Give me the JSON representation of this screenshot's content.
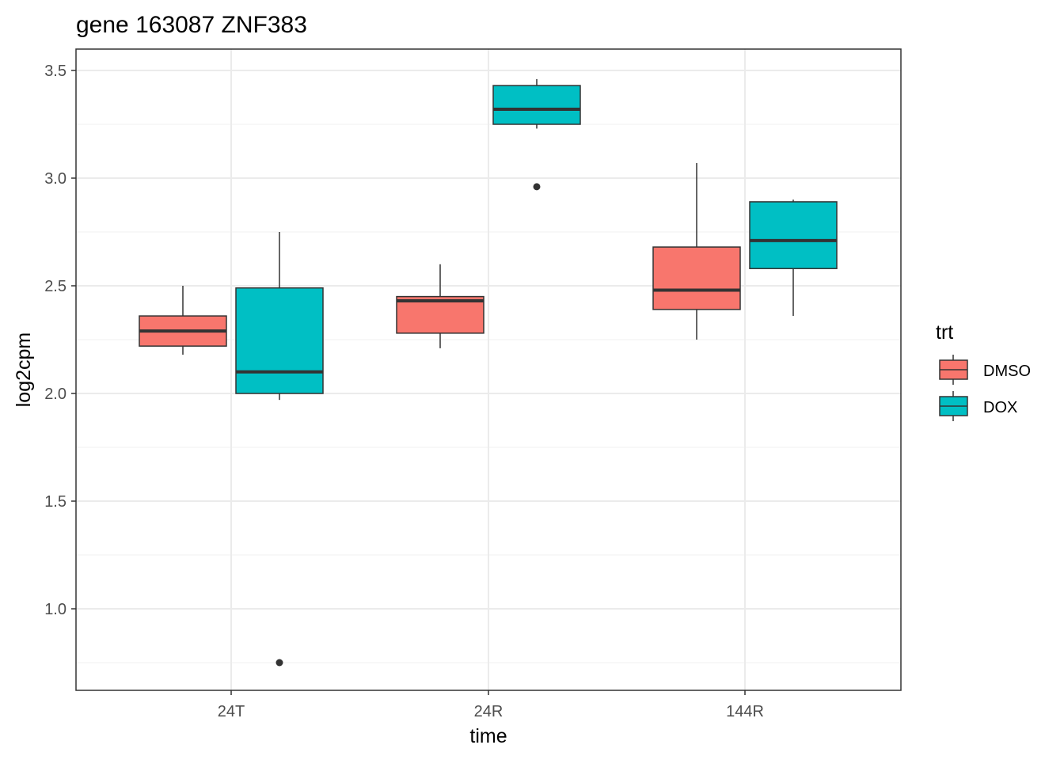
{
  "chart_data": {
    "type": "boxplot",
    "title": "gene 163087 ZNF383",
    "xlabel": "time",
    "ylabel": "log2cpm",
    "categories": [
      "24T",
      "24R",
      "144R"
    ],
    "ylim": [
      0.65,
      3.6
    ],
    "yticks": [
      1.0,
      1.5,
      2.0,
      2.5,
      3.0,
      3.5
    ],
    "ytick_labels": [
      "1.0",
      "1.5",
      "2.0",
      "2.5",
      "3.0",
      "3.5"
    ],
    "grid": true,
    "legend": {
      "title": "trt",
      "position": "right",
      "items": [
        {
          "label": "DMSO",
          "color": "#F8766D"
        },
        {
          "label": "DOX",
          "color": "#00BFC4"
        }
      ]
    },
    "series": [
      {
        "name": "DMSO",
        "color": "#F8766D",
        "boxes": [
          {
            "category": "24T",
            "min": 2.18,
            "q1": 2.22,
            "median": 2.29,
            "q3": 2.36,
            "max": 2.5,
            "outliers": []
          },
          {
            "category": "24R",
            "min": 2.21,
            "q1": 2.28,
            "median": 2.43,
            "q3": 2.45,
            "max": 2.6,
            "outliers": []
          },
          {
            "category": "144R",
            "min": 2.25,
            "q1": 2.39,
            "median": 2.48,
            "q3": 2.68,
            "max": 3.07,
            "outliers": []
          }
        ]
      },
      {
        "name": "DOX",
        "color": "#00BFC4",
        "boxes": [
          {
            "category": "24T",
            "min": 1.97,
            "q1": 2.0,
            "median": 2.1,
            "q3": 2.49,
            "max": 2.75,
            "outliers": [
              0.75
            ]
          },
          {
            "category": "24R",
            "min": 3.23,
            "q1": 3.25,
            "median": 3.32,
            "q3": 3.43,
            "max": 3.46,
            "outliers": [
              2.96
            ]
          },
          {
            "category": "144R",
            "min": 2.36,
            "q1": 2.58,
            "median": 2.71,
            "q3": 2.89,
            "max": 2.9,
            "outliers": []
          }
        ]
      }
    ]
  }
}
